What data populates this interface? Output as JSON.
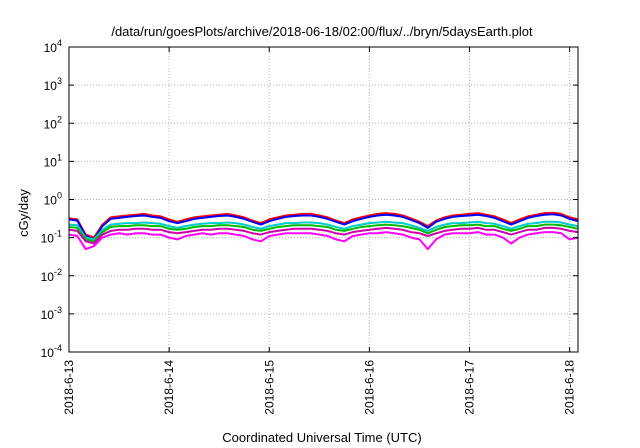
{
  "chart_data": {
    "type": "line",
    "title": "/data/run/goesPlots/archive/2018-06-18/02:00/flux/../bryn/5daysEarth.plot",
    "xlabel": "Coordinated Universal Time (UTC)",
    "ylabel": "cGy/day",
    "y_scale": "log",
    "ylim": [
      0.0001,
      10000
    ],
    "y_tick_base": "10",
    "y_tick_exponents": [
      "-4",
      "-3",
      "-2",
      "-1",
      "0",
      "1",
      "2",
      "3",
      "4"
    ],
    "xlim": [
      "2018-06-13T00:00",
      "2018-06-18T02:00"
    ],
    "x_tick_labels": [
      "2018-6-13",
      "2018-6-14",
      "2018-6-15",
      "2018-6-16",
      "2018-6-17",
      "2018-6-18"
    ],
    "x_tick_dates": [
      "2018-06-13T00:00",
      "2018-06-14T00:00",
      "2018-06-15T00:00",
      "2018-06-16T00:00",
      "2018-06-17T00:00",
      "2018-06-18T00:00"
    ],
    "grid": true,
    "x_hours": [
      0,
      2,
      4,
      6,
      8,
      10,
      12,
      14,
      16,
      18,
      20,
      22,
      24,
      26,
      28,
      30,
      32,
      34,
      36,
      38,
      40,
      42,
      44,
      46,
      48,
      50,
      52,
      54,
      56,
      58,
      60,
      62,
      64,
      66,
      68,
      70,
      72,
      74,
      76,
      78,
      80,
      82,
      84,
      86,
      88,
      90,
      92,
      94,
      96,
      98,
      100,
      102,
      104,
      106,
      108,
      110,
      112,
      114,
      116,
      118,
      120,
      122
    ],
    "series": [
      {
        "color": "#ff0000",
        "values": [
          0.32,
          0.3,
          0.12,
          0.1,
          0.22,
          0.34,
          0.36,
          0.38,
          0.4,
          0.42,
          0.38,
          0.36,
          0.3,
          0.26,
          0.3,
          0.34,
          0.36,
          0.38,
          0.4,
          0.42,
          0.38,
          0.34,
          0.28,
          0.24,
          0.3,
          0.34,
          0.38,
          0.4,
          0.42,
          0.42,
          0.38,
          0.34,
          0.28,
          0.24,
          0.3,
          0.34,
          0.38,
          0.42,
          0.44,
          0.42,
          0.38,
          0.32,
          0.26,
          0.2,
          0.28,
          0.34,
          0.38,
          0.4,
          0.42,
          0.44,
          0.4,
          0.36,
          0.3,
          0.24,
          0.3,
          0.36,
          0.4,
          0.44,
          0.45,
          0.42,
          0.34,
          0.3
        ]
      },
      {
        "color": "#0000ff",
        "values": [
          0.3,
          0.28,
          0.11,
          0.09,
          0.2,
          0.31,
          0.33,
          0.35,
          0.37,
          0.38,
          0.35,
          0.33,
          0.27,
          0.24,
          0.27,
          0.31,
          0.33,
          0.35,
          0.37,
          0.38,
          0.35,
          0.31,
          0.26,
          0.22,
          0.27,
          0.31,
          0.35,
          0.37,
          0.38,
          0.38,
          0.35,
          0.31,
          0.26,
          0.22,
          0.27,
          0.31,
          0.35,
          0.38,
          0.4,
          0.38,
          0.35,
          0.29,
          0.24,
          0.18,
          0.26,
          0.31,
          0.35,
          0.37,
          0.38,
          0.4,
          0.37,
          0.33,
          0.27,
          0.22,
          0.27,
          0.33,
          0.37,
          0.4,
          0.41,
          0.38,
          0.31,
          0.27
        ]
      },
      {
        "color": "#00cccc",
        "values": [
          0.22,
          0.21,
          0.1,
          0.09,
          0.16,
          0.22,
          0.23,
          0.24,
          0.24,
          0.25,
          0.24,
          0.23,
          0.2,
          0.18,
          0.2,
          0.22,
          0.23,
          0.24,
          0.24,
          0.25,
          0.24,
          0.22,
          0.19,
          0.17,
          0.2,
          0.22,
          0.24,
          0.24,
          0.25,
          0.25,
          0.24,
          0.22,
          0.19,
          0.17,
          0.2,
          0.22,
          0.24,
          0.25,
          0.26,
          0.25,
          0.24,
          0.21,
          0.18,
          0.15,
          0.19,
          0.22,
          0.24,
          0.24,
          0.25,
          0.26,
          0.24,
          0.23,
          0.2,
          0.17,
          0.2,
          0.23,
          0.24,
          0.26,
          0.26,
          0.25,
          0.22,
          0.2
        ]
      },
      {
        "color": "#00bb00",
        "values": [
          0.19,
          0.18,
          0.09,
          0.08,
          0.14,
          0.19,
          0.2,
          0.2,
          0.21,
          0.21,
          0.2,
          0.2,
          0.17,
          0.16,
          0.17,
          0.19,
          0.2,
          0.2,
          0.21,
          0.21,
          0.2,
          0.19,
          0.16,
          0.15,
          0.17,
          0.19,
          0.2,
          0.21,
          0.21,
          0.21,
          0.2,
          0.19,
          0.16,
          0.15,
          0.17,
          0.19,
          0.2,
          0.21,
          0.22,
          0.21,
          0.2,
          0.18,
          0.16,
          0.13,
          0.16,
          0.19,
          0.2,
          0.21,
          0.21,
          0.22,
          0.2,
          0.2,
          0.17,
          0.15,
          0.17,
          0.2,
          0.2,
          0.22,
          0.22,
          0.21,
          0.19,
          0.17
        ]
      },
      {
        "color": "#cc00aa",
        "values": [
          0.16,
          0.15,
          0.08,
          0.07,
          0.12,
          0.15,
          0.16,
          0.16,
          0.17,
          0.17,
          0.16,
          0.16,
          0.14,
          0.13,
          0.14,
          0.15,
          0.16,
          0.16,
          0.17,
          0.17,
          0.16,
          0.15,
          0.13,
          0.12,
          0.14,
          0.15,
          0.16,
          0.17,
          0.17,
          0.17,
          0.16,
          0.15,
          0.13,
          0.12,
          0.14,
          0.15,
          0.16,
          0.17,
          0.18,
          0.17,
          0.16,
          0.14,
          0.13,
          0.11,
          0.13,
          0.15,
          0.16,
          0.17,
          0.17,
          0.18,
          0.16,
          0.16,
          0.14,
          0.12,
          0.14,
          0.16,
          0.16,
          0.18,
          0.18,
          0.17,
          0.15,
          0.14
        ]
      },
      {
        "color": "#ff00ff",
        "values": [
          0.12,
          0.11,
          0.05,
          0.06,
          0.1,
          0.12,
          0.13,
          0.12,
          0.13,
          0.13,
          0.12,
          0.12,
          0.1,
          0.09,
          0.11,
          0.12,
          0.13,
          0.12,
          0.13,
          0.13,
          0.12,
          0.11,
          0.09,
          0.08,
          0.11,
          0.12,
          0.13,
          0.13,
          0.13,
          0.13,
          0.12,
          0.11,
          0.09,
          0.08,
          0.11,
          0.12,
          0.13,
          0.13,
          0.14,
          0.13,
          0.12,
          0.1,
          0.09,
          0.05,
          0.09,
          0.12,
          0.13,
          0.13,
          0.13,
          0.14,
          0.12,
          0.12,
          0.1,
          0.07,
          0.1,
          0.12,
          0.13,
          0.14,
          0.14,
          0.13,
          0.09,
          0.1
        ]
      }
    ]
  }
}
